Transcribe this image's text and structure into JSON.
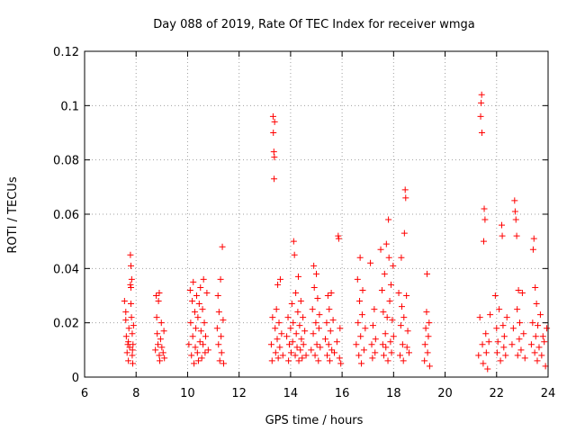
{
  "chart_data": {
    "type": "scatter",
    "title": "Day 088 of 2019, Rate Of TEC Index for receiver wmga",
    "xlabel": "GPS time / hours",
    "ylabel": "ROTI / TECUs",
    "xlim": [
      6,
      24
    ],
    "ylim": [
      0,
      0.12
    ],
    "xticks": [
      "6",
      "8",
      "10",
      "12",
      "14",
      "16",
      "18",
      "20",
      "22",
      "24"
    ],
    "yticks": [
      "0",
      "0.02",
      "0.04",
      "0.06",
      "0.08",
      "0.1",
      "0.12"
    ],
    "grid": true,
    "marker": "+",
    "marker_color": "#ff0000",
    "series": [
      {
        "name": "ROTI",
        "points": [
          [
            7.55,
            0.028
          ],
          [
            7.6,
            0.021
          ],
          [
            7.62,
            0.015
          ],
          [
            7.65,
            0.009
          ],
          [
            7.68,
            0.012
          ],
          [
            7.7,
            0.006
          ],
          [
            7.72,
            0.018
          ],
          [
            7.75,
            0.011
          ],
          [
            7.78,
            0.034
          ],
          [
            7.78,
            0.045
          ],
          [
            7.8,
            0.041
          ],
          [
            7.8,
            0.033
          ],
          [
            7.82,
            0.022
          ],
          [
            7.85,
            0.016
          ],
          [
            7.85,
            0.008
          ],
          [
            7.87,
            0.005
          ],
          [
            7.88,
            0.012
          ],
          [
            7.9,
            0.019
          ],
          [
            7.6,
            0.024
          ],
          [
            7.7,
            0.013
          ],
          [
            7.8,
            0.027
          ],
          [
            7.83,
            0.036
          ],
          [
            7.86,
            0.01
          ],
          [
            8.75,
            0.01
          ],
          [
            8.78,
            0.03
          ],
          [
            8.8,
            0.022
          ],
          [
            8.82,
            0.016
          ],
          [
            8.85,
            0.012
          ],
          [
            8.87,
            0.028
          ],
          [
            8.9,
            0.008
          ],
          [
            8.92,
            0.006
          ],
          [
            8.95,
            0.014
          ],
          [
            8.98,
            0.02
          ],
          [
            9.0,
            0.011
          ],
          [
            9.05,
            0.009
          ],
          [
            9.08,
            0.017
          ],
          [
            9.1,
            0.007
          ],
          [
            8.9,
            0.031
          ],
          [
            10.05,
            0.012
          ],
          [
            10.1,
            0.032
          ],
          [
            10.12,
            0.02
          ],
          [
            10.15,
            0.008
          ],
          [
            10.18,
            0.028
          ],
          [
            10.2,
            0.015
          ],
          [
            10.22,
            0.035
          ],
          [
            10.25,
            0.005
          ],
          [
            10.28,
            0.024
          ],
          [
            10.3,
            0.011
          ],
          [
            10.32,
            0.018
          ],
          [
            10.35,
            0.03
          ],
          [
            10.38,
            0.009
          ],
          [
            10.4,
            0.022
          ],
          [
            10.42,
            0.006
          ],
          [
            10.45,
            0.027
          ],
          [
            10.48,
            0.013
          ],
          [
            10.5,
            0.033
          ],
          [
            10.52,
            0.017
          ],
          [
            10.55,
            0.007
          ],
          [
            10.58,
            0.025
          ],
          [
            10.6,
            0.012
          ],
          [
            10.62,
            0.036
          ],
          [
            10.65,
            0.02
          ],
          [
            10.68,
            0.009
          ],
          [
            10.7,
            0.015
          ],
          [
            10.75,
            0.031
          ],
          [
            10.8,
            0.01
          ],
          [
            11.15,
            0.018
          ],
          [
            11.18,
            0.03
          ],
          [
            11.2,
            0.012
          ],
          [
            11.22,
            0.024
          ],
          [
            11.25,
            0.006
          ],
          [
            11.28,
            0.036
          ],
          [
            11.3,
            0.015
          ],
          [
            11.32,
            0.009
          ],
          [
            11.35,
            0.048
          ],
          [
            11.38,
            0.021
          ],
          [
            11.4,
            0.005
          ],
          [
            13.25,
            0.012
          ],
          [
            13.28,
            0.006
          ],
          [
            13.3,
            0.022
          ],
          [
            13.32,
            0.096
          ],
          [
            13.33,
            0.09
          ],
          [
            13.35,
            0.083
          ],
          [
            13.36,
            0.073
          ],
          [
            13.37,
            0.081
          ],
          [
            13.38,
            0.094
          ],
          [
            13.4,
            0.018
          ],
          [
            13.42,
            0.009
          ],
          [
            13.45,
            0.025
          ],
          [
            13.48,
            0.014
          ],
          [
            13.5,
            0.034
          ],
          [
            13.52,
            0.007
          ],
          [
            13.55,
            0.02
          ],
          [
            13.58,
            0.011
          ],
          [
            13.6,
            0.036
          ],
          [
            13.65,
            0.016
          ],
          [
            13.7,
            0.008
          ],
          [
            13.85,
            0.015
          ],
          [
            13.9,
            0.022
          ],
          [
            13.92,
            0.006
          ],
          [
            13.95,
            0.012
          ],
          [
            14.0,
            0.018
          ],
          [
            14.02,
            0.009
          ],
          [
            14.05,
            0.027
          ],
          [
            14.08,
            0.013
          ],
          [
            14.1,
            0.02
          ],
          [
            14.12,
            0.05
          ],
          [
            14.15,
            0.045
          ],
          [
            14.18,
            0.008
          ],
          [
            14.2,
            0.031
          ],
          [
            14.22,
            0.016
          ],
          [
            14.25,
            0.011
          ],
          [
            14.28,
            0.024
          ],
          [
            14.3,
            0.037
          ],
          [
            14.32,
            0.006
          ],
          [
            14.35,
            0.019
          ],
          [
            14.38,
            0.01
          ],
          [
            14.4,
            0.028
          ],
          [
            14.42,
            0.014
          ],
          [
            14.45,
            0.007
          ],
          [
            14.48,
            0.022
          ],
          [
            14.5,
            0.012
          ],
          [
            14.55,
            0.017
          ],
          [
            14.6,
            0.008
          ],
          [
            14.8,
            0.01
          ],
          [
            14.85,
            0.025
          ],
          [
            14.88,
            0.016
          ],
          [
            14.9,
            0.041
          ],
          [
            14.92,
            0.033
          ],
          [
            14.95,
            0.008
          ],
          [
            14.98,
            0.02
          ],
          [
            15.0,
            0.038
          ],
          [
            15.02,
            0.012
          ],
          [
            15.05,
            0.029
          ],
          [
            15.08,
            0.006
          ],
          [
            15.1,
            0.018
          ],
          [
            15.12,
            0.023
          ],
          [
            15.15,
            0.011
          ],
          [
            15.35,
            0.014
          ],
          [
            15.4,
            0.02
          ],
          [
            15.42,
            0.008
          ],
          [
            15.45,
            0.03
          ],
          [
            15.48,
            0.012
          ],
          [
            15.5,
            0.025
          ],
          [
            15.52,
            0.006
          ],
          [
            15.55,
            0.017
          ],
          [
            15.58,
            0.031
          ],
          [
            15.6,
            0.01
          ],
          [
            15.65,
            0.021
          ],
          [
            15.7,
            0.009
          ],
          [
            15.8,
            0.013
          ],
          [
            15.85,
            0.052
          ],
          [
            15.87,
            0.051
          ],
          [
            15.9,
            0.007
          ],
          [
            15.92,
            0.018
          ],
          [
            15.95,
            0.005
          ],
          [
            16.55,
            0.012
          ],
          [
            16.6,
            0.036
          ],
          [
            16.62,
            0.02
          ],
          [
            16.65,
            0.008
          ],
          [
            16.68,
            0.028
          ],
          [
            16.7,
            0.044
          ],
          [
            16.72,
            0.015
          ],
          [
            16.75,
            0.005
          ],
          [
            16.78,
            0.023
          ],
          [
            16.8,
            0.032
          ],
          [
            16.85,
            0.01
          ],
          [
            16.9,
            0.018
          ],
          [
            17.1,
            0.042
          ],
          [
            17.15,
            0.012
          ],
          [
            17.18,
            0.007
          ],
          [
            17.2,
            0.019
          ],
          [
            17.25,
            0.025
          ],
          [
            17.28,
            0.009
          ],
          [
            17.3,
            0.014
          ],
          [
            17.5,
            0.047
          ],
          [
            17.55,
            0.032
          ],
          [
            17.58,
            0.012
          ],
          [
            17.6,
            0.024
          ],
          [
            17.62,
            0.008
          ],
          [
            17.65,
            0.038
          ],
          [
            17.68,
            0.016
          ],
          [
            17.7,
            0.011
          ],
          [
            17.72,
            0.049
          ],
          [
            17.75,
            0.022
          ],
          [
            17.78,
            0.006
          ],
          [
            17.8,
            0.058
          ],
          [
            17.82,
            0.044
          ],
          [
            17.85,
            0.028
          ],
          [
            17.88,
            0.013
          ],
          [
            17.9,
            0.034
          ],
          [
            17.92,
            0.009
          ],
          [
            17.95,
            0.021
          ],
          [
            17.98,
            0.041
          ],
          [
            18.0,
            0.015
          ],
          [
            18.2,
            0.031
          ],
          [
            18.25,
            0.008
          ],
          [
            18.28,
            0.019
          ],
          [
            18.3,
            0.044
          ],
          [
            18.32,
            0.026
          ],
          [
            18.35,
            0.012
          ],
          [
            18.38,
            0.006
          ],
          [
            18.4,
            0.022
          ],
          [
            18.42,
            0.053
          ],
          [
            18.45,
            0.069
          ],
          [
            18.47,
            0.066
          ],
          [
            18.5,
            0.03
          ],
          [
            18.52,
            0.011
          ],
          [
            18.55,
            0.017
          ],
          [
            18.6,
            0.009
          ],
          [
            19.2,
            0.006
          ],
          [
            19.22,
            0.012
          ],
          [
            19.25,
            0.018
          ],
          [
            19.28,
            0.024
          ],
          [
            19.3,
            0.038
          ],
          [
            19.32,
            0.009
          ],
          [
            19.35,
            0.015
          ],
          [
            19.38,
            0.02
          ],
          [
            19.4,
            0.004
          ],
          [
            21.3,
            0.008
          ],
          [
            21.35,
            0.022
          ],
          [
            21.38,
            0.096
          ],
          [
            21.4,
            0.101
          ],
          [
            21.42,
            0.104
          ],
          [
            21.43,
            0.09
          ],
          [
            21.45,
            0.012
          ],
          [
            21.48,
            0.005
          ],
          [
            21.5,
            0.05
          ],
          [
            21.52,
            0.062
          ],
          [
            21.55,
            0.058
          ],
          [
            21.58,
            0.016
          ],
          [
            21.6,
            0.009
          ],
          [
            21.65,
            0.003
          ],
          [
            21.7,
            0.013
          ],
          [
            21.75,
            0.023
          ],
          [
            21.95,
            0.03
          ],
          [
            22.0,
            0.018
          ],
          [
            22.02,
            0.009
          ],
          [
            22.05,
            0.013
          ],
          [
            22.1,
            0.025
          ],
          [
            22.15,
            0.006
          ],
          [
            22.2,
            0.056
          ],
          [
            22.22,
            0.052
          ],
          [
            22.25,
            0.019
          ],
          [
            22.28,
            0.011
          ],
          [
            22.3,
            0.015
          ],
          [
            22.35,
            0.008
          ],
          [
            22.4,
            0.022
          ],
          [
            22.6,
            0.012
          ],
          [
            22.65,
            0.018
          ],
          [
            22.7,
            0.065
          ],
          [
            22.72,
            0.061
          ],
          [
            22.75,
            0.058
          ],
          [
            22.78,
            0.052
          ],
          [
            22.8,
            0.025
          ],
          [
            22.82,
            0.008
          ],
          [
            22.85,
            0.032
          ],
          [
            22.88,
            0.014
          ],
          [
            22.9,
            0.02
          ],
          [
            22.95,
            0.01
          ],
          [
            23.0,
            0.031
          ],
          [
            23.05,
            0.016
          ],
          [
            23.1,
            0.007
          ],
          [
            23.35,
            0.012
          ],
          [
            23.4,
            0.02
          ],
          [
            23.42,
            0.047
          ],
          [
            23.45,
            0.051
          ],
          [
            23.48,
            0.009
          ],
          [
            23.5,
            0.033
          ],
          [
            23.52,
            0.015
          ],
          [
            23.55,
            0.027
          ],
          [
            23.58,
            0.006
          ],
          [
            23.6,
            0.019
          ],
          [
            23.65,
            0.011
          ],
          [
            23.7,
            0.023
          ],
          [
            23.75,
            0.008
          ],
          [
            23.8,
            0.015
          ],
          [
            23.85,
            0.013
          ],
          [
            23.9,
            0.004
          ],
          [
            23.95,
            0.018
          ]
        ]
      }
    ]
  }
}
